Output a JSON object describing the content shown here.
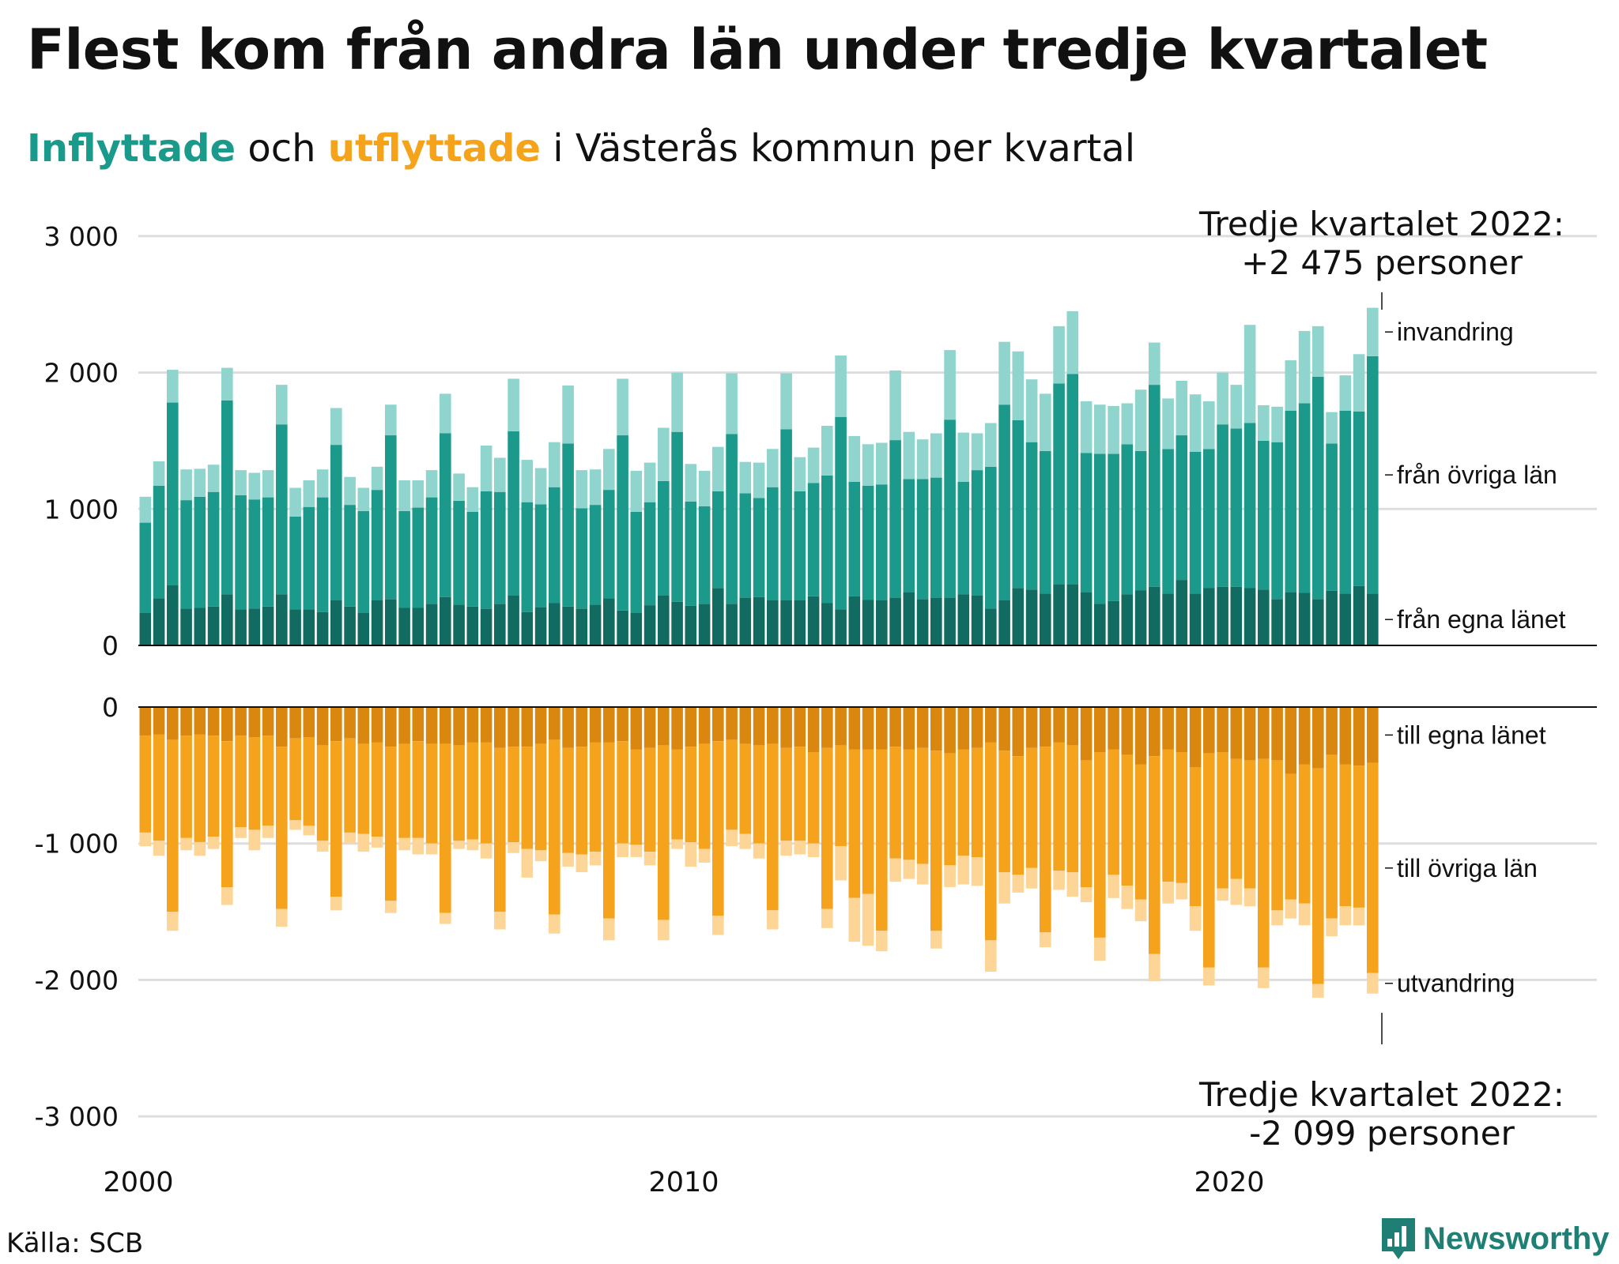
{
  "title": "Flest kom från andra län under tredje kvartalet",
  "subtitle": {
    "part1": "Inflyttade",
    "part2": " och ",
    "part3": "utflyttade",
    "part4": " i Västerås kommun per kvartal"
  },
  "source": "Källa: SCB",
  "logo": {
    "text": "Newsworthy",
    "icon": "newsworthy-bar-chart-logo-icon"
  },
  "colors": {
    "in_own": "#126b61",
    "in_other": "#1b9a8b",
    "in_immig": "#8fd5cd",
    "out_own": "#d9870f",
    "out_other": "#f5a21c",
    "out_emig": "#fcd597",
    "grid": "#dddddd",
    "axis": "#111111"
  },
  "annotations": {
    "top_line1": "Tredje kvartalet 2022:",
    "top_line2": "+2 475 personer",
    "bottom_line1": "Tredje kvartalet 2022:",
    "bottom_line2": "-2 099 personer"
  },
  "chart_data": {
    "type": "bar",
    "stacked": true,
    "x_start": "2000 Q1",
    "x_end": "2022 Q3",
    "xticks": [
      "2000",
      "2010",
      "2020"
    ],
    "top_panel": {
      "ylim": [
        0,
        3000
      ],
      "yticks": [
        0,
        1000,
        2000,
        3000
      ],
      "ytick_labels": [
        "0",
        "1 000",
        "2 000",
        "3 000"
      ],
      "segment_labels": [
        "från egna länet",
        "från övriga län",
        "invandring"
      ],
      "series": [
        {
          "name": "från egna länet",
          "values": [
            240,
            345,
            440,
            270,
            275,
            285,
            375,
            265,
            270,
            285,
            375,
            265,
            265,
            245,
            330,
            285,
            240,
            330,
            340,
            275,
            275,
            305,
            355,
            300,
            285,
            270,
            305,
            365,
            245,
            280,
            310,
            285,
            270,
            300,
            345,
            255,
            240,
            295,
            365,
            320,
            290,
            305,
            420,
            305,
            350,
            355,
            330,
            330,
            330,
            360,
            310,
            265,
            360,
            335,
            330,
            350,
            390,
            340,
            350,
            350,
            375,
            365,
            270,
            330,
            420,
            410,
            380,
            450,
            450,
            390,
            305,
            325,
            375,
            405,
            430,
            380,
            480,
            380,
            420,
            430,
            430,
            420,
            410,
            340,
            390,
            385,
            340,
            400,
            380,
            435,
            380
          ]
        },
        {
          "name": "från övriga län",
          "values": [
            660,
            825,
            1340,
            795,
            815,
            840,
            1420,
            835,
            800,
            800,
            1245,
            680,
            750,
            840,
            1140,
            745,
            745,
            810,
            1200,
            710,
            735,
            780,
            1200,
            760,
            695,
            860,
            820,
            1205,
            805,
            755,
            850,
            1195,
            735,
            730,
            795,
            1285,
            740,
            755,
            840,
            1245,
            765,
            715,
            710,
            1245,
            765,
            725,
            830,
            1255,
            800,
            830,
            935,
            1410,
            840,
            835,
            850,
            1155,
            830,
            880,
            880,
            1305,
            825,
            920,
            1040,
            1435,
            1230,
            1080,
            1045,
            1470,
            1540,
            1020,
            1100,
            1080,
            1100,
            1020,
            1480,
            1060,
            1060,
            1040,
            1020,
            1190,
            1160,
            1210,
            1090,
            1150,
            1330,
            1390,
            1630,
            1080,
            1340,
            1280,
            1740
          ]
        },
        {
          "name": "invandring",
          "values": [
            190,
            180,
            240,
            225,
            205,
            200,
            240,
            185,
            195,
            200,
            290,
            210,
            195,
            205,
            270,
            205,
            170,
            170,
            225,
            225,
            200,
            200,
            290,
            200,
            180,
            335,
            250,
            385,
            310,
            265,
            330,
            425,
            280,
            260,
            300,
            415,
            300,
            290,
            390,
            435,
            275,
            260,
            325,
            445,
            230,
            260,
            280,
            410,
            250,
            260,
            365,
            450,
            335,
            305,
            305,
            510,
            345,
            290,
            325,
            510,
            360,
            270,
            320,
            460,
            505,
            460,
            420,
            420,
            460,
            380,
            360,
            350,
            300,
            450,
            310,
            370,
            400,
            420,
            350,
            380,
            320,
            720,
            260,
            260,
            370,
            530,
            370,
            230,
            260,
            420,
            355
          ]
        }
      ]
    },
    "bottom_panel": {
      "ylim": [
        -3000,
        0
      ],
      "yticks": [
        0,
        -1000,
        -2000,
        -3000
      ],
      "ytick_labels": [
        "0",
        "-1 000",
        "-2 000",
        "-3 000"
      ],
      "segment_labels": [
        "till egna länet",
        "till övriga län",
        "utvandring"
      ],
      "series": [
        {
          "name": "till egna länet",
          "values": [
            -210,
            -200,
            -240,
            -210,
            -200,
            -210,
            -250,
            -210,
            -220,
            -210,
            -290,
            -230,
            -220,
            -280,
            -250,
            -230,
            -270,
            -260,
            -290,
            -270,
            -250,
            -270,
            -270,
            -280,
            -260,
            -260,
            -300,
            -290,
            -290,
            -270,
            -240,
            -300,
            -290,
            -260,
            -260,
            -250,
            -310,
            -300,
            -280,
            -310,
            -290,
            -270,
            -250,
            -240,
            -270,
            -280,
            -270,
            -300,
            -290,
            -330,
            -300,
            -280,
            -310,
            -310,
            -310,
            -290,
            -310,
            -300,
            -320,
            -340,
            -310,
            -300,
            -260,
            -320,
            -360,
            -300,
            -290,
            -260,
            -280,
            -390,
            -330,
            -310,
            -350,
            -420,
            -360,
            -310,
            -330,
            -440,
            -340,
            -330,
            -380,
            -390,
            -380,
            -390,
            -490,
            -420,
            -450,
            -350,
            -420,
            -430,
            -410
          ]
        },
        {
          "name": "till övriga län",
          "values": [
            -710,
            -780,
            -1260,
            -750,
            -790,
            -740,
            -1070,
            -670,
            -680,
            -660,
            -1190,
            -600,
            -650,
            -700,
            -1140,
            -690,
            -660,
            -690,
            -1130,
            -690,
            -710,
            -730,
            -1240,
            -700,
            -710,
            -740,
            -1200,
            -700,
            -750,
            -780,
            -1280,
            -770,
            -790,
            -800,
            -1290,
            -750,
            -700,
            -760,
            -1280,
            -660,
            -700,
            -770,
            -1280,
            -660,
            -660,
            -720,
            -1220,
            -680,
            -690,
            -670,
            -1180,
            -740,
            -1090,
            -1060,
            -1330,
            -820,
            -810,
            -850,
            -1320,
            -820,
            -780,
            -800,
            -1450,
            -890,
            -870,
            -880,
            -1360,
            -940,
            -930,
            -930,
            -1360,
            -920,
            -960,
            -990,
            -1450,
            -970,
            -960,
            -1020,
            -1570,
            -1000,
            -880,
            -940,
            -1530,
            -1100,
            -920,
            -1020,
            -1580,
            -1200,
            -1040,
            -1040,
            -1540
          ]
        },
        {
          "name": "utvandring",
          "values": [
            -100,
            -110,
            -140,
            -90,
            -100,
            -90,
            -130,
            -80,
            -150,
            -90,
            -130,
            -70,
            -70,
            -80,
            -100,
            -80,
            -130,
            -80,
            -90,
            -90,
            -120,
            -80,
            -80,
            -60,
            -80,
            -110,
            -130,
            -80,
            -210,
            -80,
            -140,
            -100,
            -130,
            -100,
            -160,
            -100,
            -90,
            -100,
            -150,
            -70,
            -180,
            -100,
            -140,
            -120,
            -110,
            -110,
            -140,
            -110,
            -100,
            -100,
            -140,
            -250,
            -320,
            -380,
            -150,
            -170,
            -140,
            -150,
            -130,
            -160,
            -210,
            -210,
            -230,
            -230,
            -130,
            -150,
            -110,
            -140,
            -180,
            -110,
            -170,
            -170,
            -170,
            -160,
            -200,
            -160,
            -120,
            -180,
            -130,
            -90,
            -190,
            -130,
            -150,
            -110,
            -140,
            -160,
            -100,
            -130,
            -140,
            -130,
            -150
          ]
        }
      ]
    }
  }
}
